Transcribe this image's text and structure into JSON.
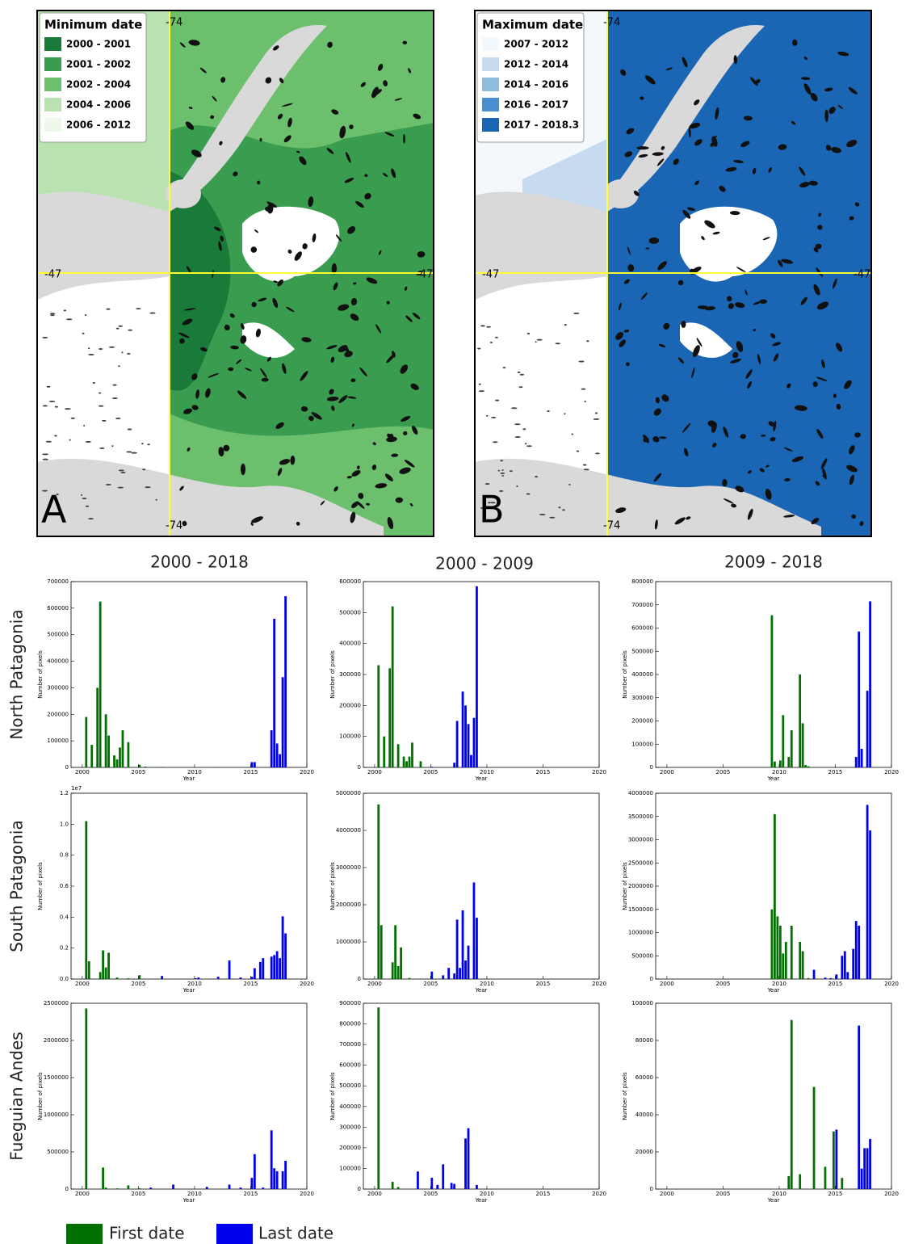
{
  "figure": {
    "maps": [
      {
        "letter": "A",
        "legend_title": "Minimum date",
        "legend": [
          {
            "label": "2000 - 2001",
            "color": "#1a7a3a"
          },
          {
            "label": "2001 - 2002",
            "color": "#3a9c4e"
          },
          {
            "label": "2002 - 2004",
            "color": "#6cbf6c"
          },
          {
            "label": "2004 - 2006",
            "color": "#b9e2b0"
          },
          {
            "label": "2006 - 2012",
            "color": "#eef8ea"
          }
        ],
        "coord_labels": [
          "-74",
          "-74",
          "-47",
          "-47"
        ]
      },
      {
        "letter": "B",
        "legend_title": "Maximum date",
        "legend": [
          {
            "label": "2007 - 2012",
            "color": "#f3f8fc"
          },
          {
            "label": "2012 - 2014",
            "color": "#c6dbef"
          },
          {
            "label": "2014 - 2016",
            "color": "#8fbde0"
          },
          {
            "label": "2016 - 2017",
            "color": "#4a8fcf"
          },
          {
            "label": "2017 - 2018.3",
            "color": "#1a66b4"
          }
        ],
        "coord_labels": [
          "-74",
          "-74",
          "-47",
          "-47"
        ]
      }
    ],
    "column_titles": [
      "2000 - 2018",
      "2000 - 2009",
      "2009 - 2018"
    ],
    "row_titles": [
      "North Patagonia",
      "South Patagonia",
      "Fueguian Andes"
    ]
  },
  "chart_data": [
    {
      "type": "bar",
      "x_label": "Year",
      "y_label": "Number of pixels",
      "xlim": [
        1999,
        2020
      ],
      "xticks": [
        2000,
        2005,
        2010,
        2015,
        2020
      ],
      "ylim": [
        0,
        700000
      ],
      "yticks": [
        0,
        100000,
        200000,
        300000,
        400000,
        500000,
        600000,
        700000
      ],
      "series": [
        {
          "name": "First date",
          "color": "#007000",
          "x": [
            2000.25,
            2000.75,
            2001.25,
            2001.5,
            2002,
            2002.25,
            2002.75,
            2003,
            2003.25,
            2003.5,
            2004,
            2005,
            2005.5,
            2007
          ],
          "values": [
            190000,
            85000,
            300000,
            625000,
            200000,
            120000,
            45000,
            30000,
            75000,
            140000,
            95000,
            10000,
            3000,
            2000
          ]
        },
        {
          "name": "Last date",
          "color": "#0000f0",
          "x": [
            2012,
            2015,
            2015.25,
            2016.75,
            2017,
            2017.25,
            2017.5,
            2017.75,
            2018
          ],
          "values": [
            1000,
            20000,
            20000,
            140000,
            560000,
            90000,
            50000,
            340000,
            645000
          ]
        }
      ]
    },
    {
      "type": "bar",
      "x_label": "Year",
      "y_label": "Number of pixels",
      "xlim": [
        1999,
        2020
      ],
      "xticks": [
        2000,
        2005,
        2010,
        2015,
        2020
      ],
      "ylim": [
        0,
        600000
      ],
      "yticks": [
        0,
        100000,
        200000,
        300000,
        400000,
        500000,
        600000
      ],
      "series": [
        {
          "name": "First date",
          "color": "#007000",
          "x": [
            2000.25,
            2000.75,
            2001.25,
            2001.5,
            2002,
            2002.5,
            2002.75,
            2003,
            2003.25,
            2004
          ],
          "values": [
            330000,
            100000,
            320000,
            520000,
            75000,
            35000,
            20000,
            35000,
            80000,
            20000
          ]
        },
        {
          "name": "Last date",
          "color": "#0000f0",
          "x": [
            2005,
            2007,
            2007.25,
            2007.75,
            2008,
            2008.25,
            2008.5,
            2008.75,
            2009
          ],
          "values": [
            2000,
            15000,
            150000,
            245000,
            200000,
            140000,
            40000,
            160000,
            585000
          ]
        }
      ]
    },
    {
      "type": "bar",
      "x_label": "Year",
      "y_label": "Number of pixels",
      "xlim": [
        1999,
        2020
      ],
      "xticks": [
        2000,
        2005,
        2010,
        2015,
        2020
      ],
      "ylim": [
        0,
        800000
      ],
      "yticks": [
        0,
        100000,
        200000,
        300000,
        400000,
        500000,
        600000,
        700000,
        800000
      ],
      "series": [
        {
          "name": "First date",
          "color": "#007000",
          "x": [
            2009.25,
            2009.5,
            2010,
            2010.25,
            2010.75,
            2011,
            2011.75,
            2012,
            2012.25,
            2012.5
          ],
          "values": [
            655000,
            25000,
            30000,
            225000,
            45000,
            160000,
            400000,
            190000,
            10000,
            5000
          ]
        },
        {
          "name": "Last date",
          "color": "#0000f0",
          "x": [
            2016.75,
            2017,
            2017.25,
            2017.75,
            2018
          ],
          "values": [
            45000,
            585000,
            80000,
            330000,
            715000
          ]
        }
      ]
    },
    {
      "type": "bar",
      "x_label": "Year",
      "y_label": "Number of pixels",
      "y_offset_label": "1e7",
      "xlim": [
        1999,
        2020
      ],
      "xticks": [
        2000,
        2005,
        2010,
        2015,
        2020
      ],
      "ylim": [
        0,
        12000000
      ],
      "yticks": [
        {
          "value": 0,
          "label": "0.0"
        },
        {
          "value": 2000000,
          "label": "0.2"
        },
        {
          "value": 4000000,
          "label": "0.4"
        },
        {
          "value": 6000000,
          "label": "0.6"
        },
        {
          "value": 8000000,
          "label": "0.8"
        },
        {
          "value": 10000000,
          "label": "1.0"
        },
        {
          "value": 12000000,
          "label": "1.2"
        }
      ],
      "series": [
        {
          "name": "First date",
          "color": "#007000",
          "x": [
            2000.25,
            2000.5,
            2001.5,
            2001.75,
            2002,
            2002.25,
            2003,
            2004,
            2005
          ],
          "values": [
            10200000,
            1150000,
            450000,
            1850000,
            750000,
            1700000,
            100000,
            50000,
            250000
          ]
        },
        {
          "name": "Last date",
          "color": "#0000f0",
          "x": [
            2007,
            2010,
            2010.25,
            2012,
            2013,
            2014,
            2015,
            2015.25,
            2015.75,
            2016,
            2016.75,
            2017,
            2017.25,
            2017.5,
            2017.75,
            2018
          ],
          "values": [
            200000,
            50000,
            100000,
            150000,
            1200000,
            100000,
            150000,
            700000,
            1100000,
            1350000,
            1450000,
            1550000,
            1800000,
            1350000,
            4050000,
            2950000
          ]
        }
      ]
    },
    {
      "type": "bar",
      "x_label": "Year",
      "y_label": "Number of pixels",
      "xlim": [
        1999,
        2020
      ],
      "xticks": [
        2000,
        2005,
        2010,
        2015,
        2020
      ],
      "ylim": [
        0,
        5000000
      ],
      "yticks": [
        0,
        1000000,
        2000000,
        3000000,
        4000000,
        5000000
      ],
      "series": [
        {
          "name": "First date",
          "color": "#007000",
          "x": [
            2000.25,
            2000.5,
            2001.5,
            2001.75,
            2002,
            2002.25,
            2003
          ],
          "values": [
            4700000,
            1450000,
            450000,
            1450000,
            350000,
            850000,
            30000
          ]
        },
        {
          "name": "Last date",
          "color": "#0000f0",
          "x": [
            2005,
            2006,
            2006.5,
            2007,
            2007.25,
            2007.5,
            2007.75,
            2008,
            2008.25,
            2008.75,
            2009
          ],
          "values": [
            200000,
            100000,
            300000,
            150000,
            1600000,
            300000,
            1850000,
            500000,
            900000,
            2600000,
            1650000
          ]
        }
      ]
    },
    {
      "type": "bar",
      "x_label": "Year",
      "y_label": "Number of pixels",
      "xlim": [
        1999,
        2020
      ],
      "xticks": [
        2000,
        2005,
        2010,
        2015,
        2020
      ],
      "ylim": [
        0,
        4000000
      ],
      "yticks": [
        0,
        500000,
        1000000,
        1500000,
        2000000,
        2500000,
        3000000,
        3500000,
        4000000
      ],
      "series": [
        {
          "name": "First date",
          "color": "#007000",
          "x": [
            2009.25,
            2009.5,
            2009.75,
            2010,
            2010.25,
            2010.5,
            2011,
            2011.75,
            2012,
            2012.5
          ],
          "values": [
            1500000,
            3550000,
            1350000,
            1150000,
            550000,
            800000,
            1150000,
            800000,
            600000,
            20000
          ]
        },
        {
          "name": "Last date",
          "color": "#0000f0",
          "x": [
            2013,
            2014,
            2014.5,
            2015,
            2015.5,
            2015.75,
            2016,
            2016.5,
            2016.75,
            2017,
            2017.75,
            2018
          ],
          "values": [
            200000,
            30000,
            20000,
            100000,
            500000,
            600000,
            150000,
            650000,
            1250000,
            1150000,
            3750000,
            3200000
          ]
        }
      ]
    },
    {
      "type": "bar",
      "x_label": "Year",
      "y_label": "Number of pixels",
      "xlim": [
        1999,
        2020
      ],
      "xticks": [
        2000,
        2005,
        2010,
        2015,
        2020
      ],
      "ylim": [
        0,
        2500000
      ],
      "yticks": [
        0,
        500000,
        1000000,
        1500000,
        2000000,
        2500000
      ],
      "series": [
        {
          "name": "First date",
          "color": "#007000",
          "x": [
            2000.25,
            2001.75,
            2002,
            2003,
            2004,
            2005
          ],
          "values": [
            2430000,
            290000,
            20000,
            10000,
            50000,
            10000
          ]
        },
        {
          "name": "Last date",
          "color": "#0000f0",
          "x": [
            2006,
            2008,
            2011,
            2013,
            2014,
            2015,
            2015.25,
            2016,
            2016.75,
            2017,
            2017.25,
            2017.75,
            2018
          ],
          "values": [
            20000,
            60000,
            30000,
            60000,
            20000,
            150000,
            470000,
            20000,
            790000,
            280000,
            240000,
            240000,
            380000
          ]
        }
      ]
    },
    {
      "type": "bar",
      "x_label": "Year",
      "y_label": "Number of pixels",
      "xlim": [
        1999,
        2020
      ],
      "xticks": [
        2000,
        2005,
        2010,
        2015,
        2020
      ],
      "ylim": [
        0,
        900000
      ],
      "yticks": [
        0,
        100000,
        200000,
        300000,
        400000,
        500000,
        600000,
        700000,
        800000,
        900000
      ],
      "series": [
        {
          "name": "First date",
          "color": "#007000",
          "x": [
            2000.25,
            2001.5,
            2002
          ],
          "values": [
            880000,
            35000,
            10000
          ]
        },
        {
          "name": "Last date",
          "color": "#0000f0",
          "x": [
            2003.75,
            2005,
            2005.5,
            2006,
            2006.75,
            2007,
            2008,
            2008.25,
            2009
          ],
          "values": [
            85000,
            55000,
            20000,
            120000,
            30000,
            25000,
            245000,
            295000,
            20000
          ]
        }
      ]
    },
    {
      "type": "bar",
      "x_label": "Year",
      "y_label": "Number of pixels",
      "xlim": [
        1999,
        2020
      ],
      "xticks": [
        2000,
        2005,
        2010,
        2015,
        2020
      ],
      "ylim": [
        0,
        100000
      ],
      "yticks": [
        0,
        20000,
        40000,
        60000,
        80000,
        100000
      ],
      "series": [
        {
          "name": "First date",
          "color": "#007000",
          "x": [
            2010.75,
            2011,
            2011.75,
            2013,
            2014,
            2014.75,
            2015.5
          ],
          "values": [
            7000,
            91000,
            8000,
            55000,
            12000,
            31000,
            6000
          ]
        },
        {
          "name": "Last date",
          "color": "#0000f0",
          "x": [
            2015,
            2017,
            2017.25,
            2017.5,
            2017.75,
            2018
          ],
          "values": [
            32000,
            88000,
            11000,
            22000,
            22000,
            27000
          ]
        }
      ]
    }
  ]
}
